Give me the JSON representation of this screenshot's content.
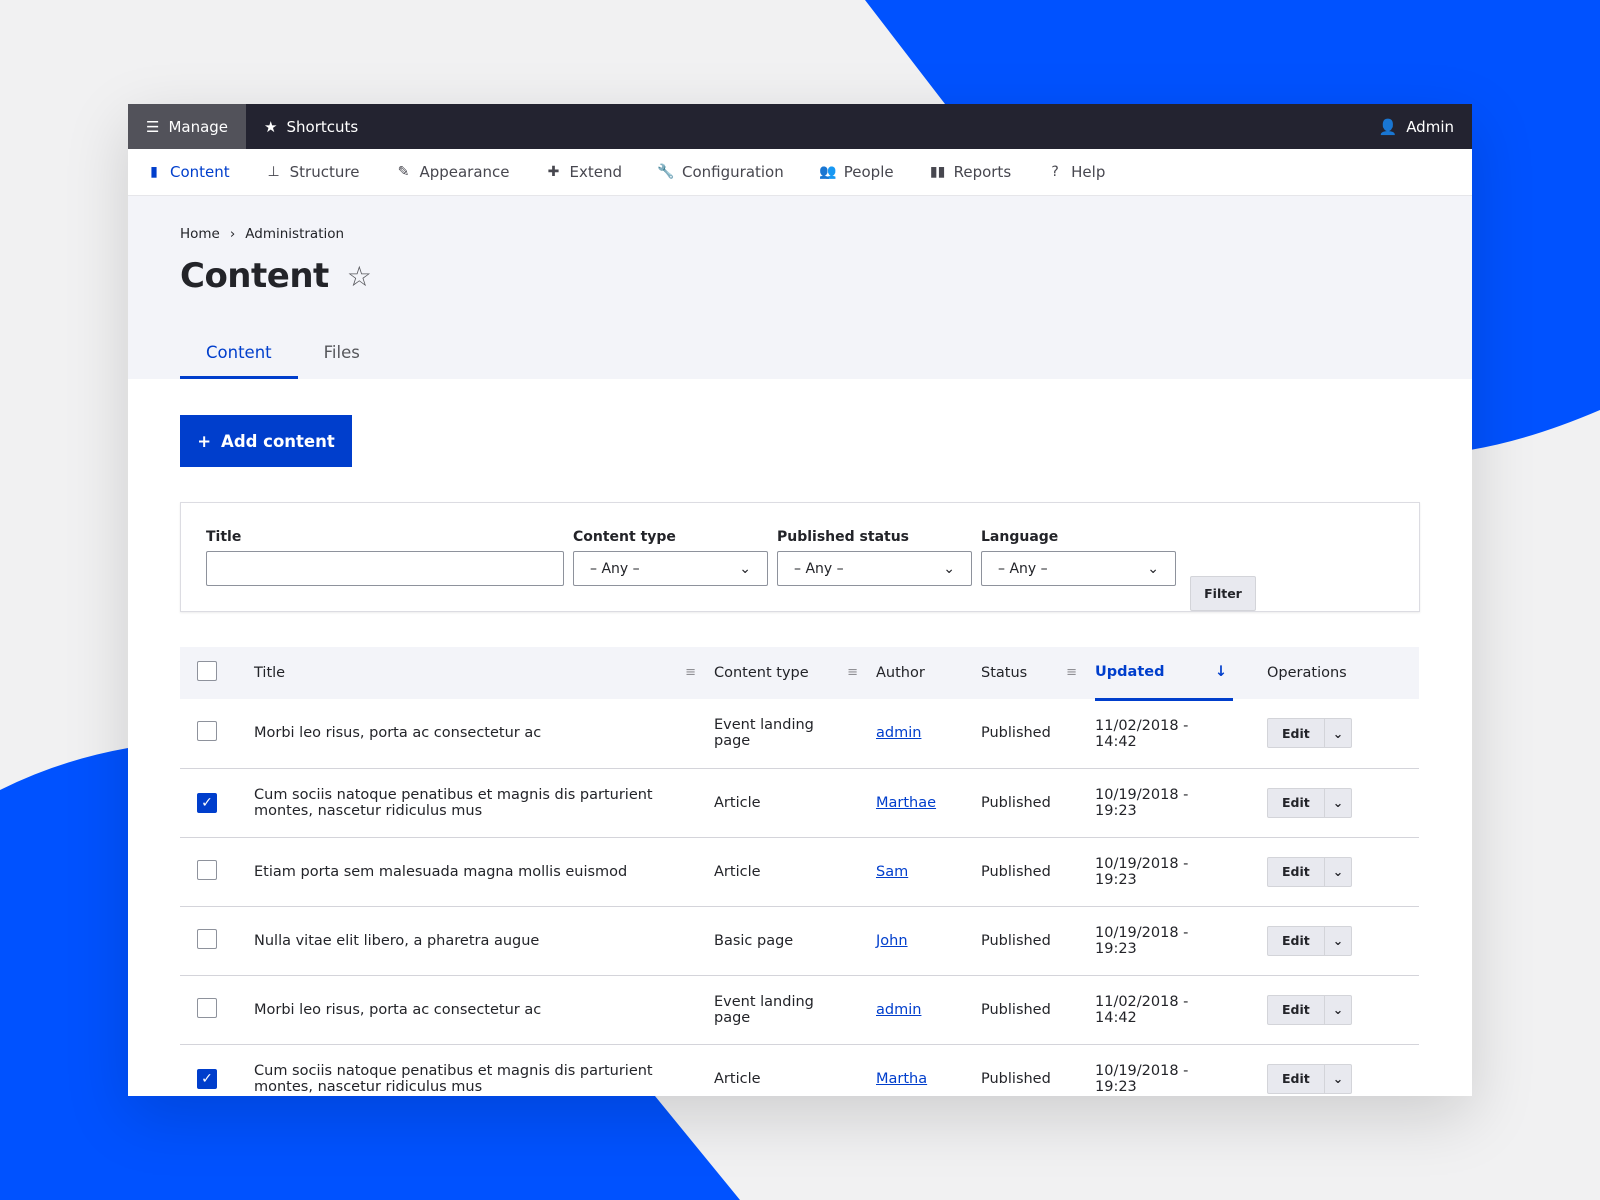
{
  "colors": {
    "accent": "#003ecc",
    "background_blue": "#0052ff",
    "toolbar": "#232330"
  },
  "toolbar": {
    "manage": "Manage",
    "shortcuts": "Shortcuts",
    "user": "Admin"
  },
  "nav": [
    {
      "label": "Content",
      "icon": "file-icon"
    },
    {
      "label": "Structure",
      "icon": "sitemap-icon"
    },
    {
      "label": "Appearance",
      "icon": "brush-icon"
    },
    {
      "label": "Extend",
      "icon": "puzzle-icon"
    },
    {
      "label": "Configuration",
      "icon": "wrench-icon"
    },
    {
      "label": "People",
      "icon": "people-icon"
    },
    {
      "label": "Reports",
      "icon": "bar-chart-icon"
    },
    {
      "label": "Help",
      "icon": "help-icon"
    }
  ],
  "breadcrumb": [
    "Home",
    "Administration"
  ],
  "page_title": "Content",
  "tabs": [
    "Content",
    "Files"
  ],
  "add_button": "Add content",
  "filters": {
    "title_label": "Title",
    "title_value": "",
    "content_type_label": "Content type",
    "content_type_value": "– Any –",
    "status_label": "Published status",
    "status_value": "– Any –",
    "language_label": "Language",
    "language_value": "– Any –",
    "filter_button": "Filter"
  },
  "table": {
    "headers": [
      "Title",
      "Content type",
      "Author",
      "Status",
      "Updated",
      "Operations"
    ],
    "rows": [
      {
        "checked": false,
        "title": "Morbi leo risus, porta ac consectetur ac",
        "type": "Event landing page",
        "author": "admin",
        "status": "Published",
        "updated": "11/02/2018 - 14:42",
        "op": "Edit"
      },
      {
        "checked": true,
        "title": "Cum sociis natoque penatibus et magnis dis parturient montes, nascetur ridiculus mus",
        "type": "Article",
        "author": "Marthae",
        "status": "Published",
        "updated": "10/19/2018 - 19:23",
        "op": "Edit"
      },
      {
        "checked": false,
        "title": "Etiam porta sem malesuada magna mollis euismod",
        "type": "Article",
        "author": "Sam",
        "status": "Published",
        "updated": "10/19/2018 - 19:23",
        "op": "Edit"
      },
      {
        "checked": false,
        "title": "Nulla vitae elit libero, a pharetra augue",
        "type": "Basic page",
        "author": "John",
        "status": "Published",
        "updated": "10/19/2018 - 19:23",
        "op": "Edit"
      },
      {
        "checked": false,
        "title": "Morbi leo risus, porta ac consectetur ac",
        "type": "Event landing page",
        "author": "admin",
        "status": "Published",
        "updated": "11/02/2018 - 14:42",
        "op": "Edit"
      },
      {
        "checked": true,
        "title": "Cum sociis natoque penatibus et magnis dis parturient montes, nascetur ridiculus mus",
        "type": "Article",
        "author": "Martha",
        "status": "Published",
        "updated": "10/19/2018 - 19:23",
        "op": "Edit"
      }
    ]
  }
}
